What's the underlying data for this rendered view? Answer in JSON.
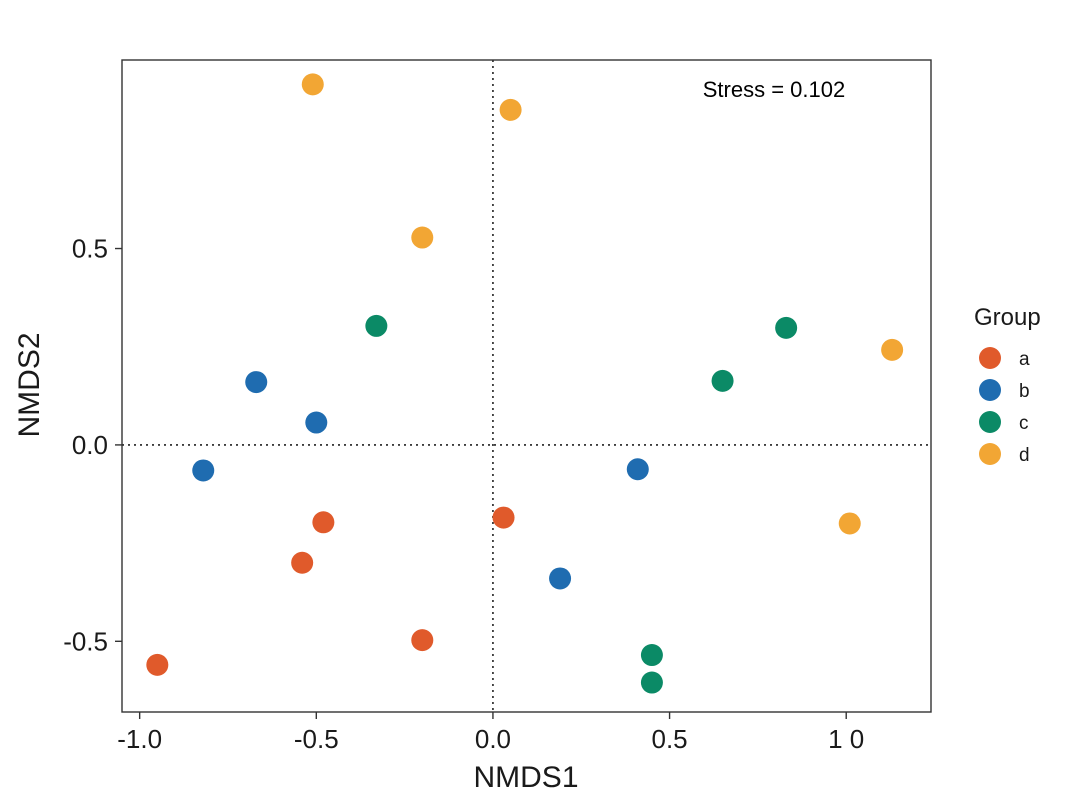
{
  "chart_data": {
    "type": "scatter",
    "xlabel": "NMDS1",
    "ylabel": "NMDS2",
    "xlim": [
      -1.05,
      1.24
    ],
    "ylim": [
      -0.68,
      0.98
    ],
    "x_ticks": [
      -1.0,
      -0.5,
      0.0,
      0.5,
      1.0
    ],
    "x_tick_labels": [
      "-1.0",
      "-0.5",
      "0.0",
      "0.5",
      "1 0"
    ],
    "y_ticks": [
      -0.5,
      0.0,
      0.5
    ],
    "y_tick_labels": [
      "-0.5",
      "0.0",
      "0.5"
    ],
    "grid": false,
    "reference_lines": {
      "x": 0,
      "y": 0,
      "style": "dotted"
    },
    "annotation": "Stress = 0.102",
    "legend": {
      "title": "Group",
      "placement": "right"
    },
    "series": [
      {
        "name": "a",
        "color": "#E05A2B",
        "points": [
          [
            -0.95,
            -0.56
          ],
          [
            -0.54,
            -0.3
          ],
          [
            -0.48,
            -0.197
          ],
          [
            -0.2,
            -0.497
          ],
          [
            0.03,
            -0.185
          ]
        ]
      },
      {
        "name": "b",
        "color": "#1F6CB0",
        "points": [
          [
            -0.82,
            -0.065
          ],
          [
            -0.67,
            0.16
          ],
          [
            -0.5,
            0.057
          ],
          [
            0.19,
            -0.34
          ],
          [
            0.41,
            -0.062
          ]
        ]
      },
      {
        "name": "c",
        "color": "#0B8A66",
        "points": [
          [
            -0.33,
            0.303
          ],
          [
            0.65,
            0.163
          ],
          [
            0.83,
            0.298
          ],
          [
            0.45,
            -0.535
          ],
          [
            0.45,
            -0.605
          ]
        ]
      },
      {
        "name": "d",
        "color": "#F2A634",
        "points": [
          [
            -0.51,
            0.918
          ],
          [
            0.05,
            0.853
          ],
          [
            -0.2,
            0.528
          ],
          [
            1.13,
            0.242
          ],
          [
            1.01,
            -0.2
          ]
        ]
      }
    ]
  }
}
